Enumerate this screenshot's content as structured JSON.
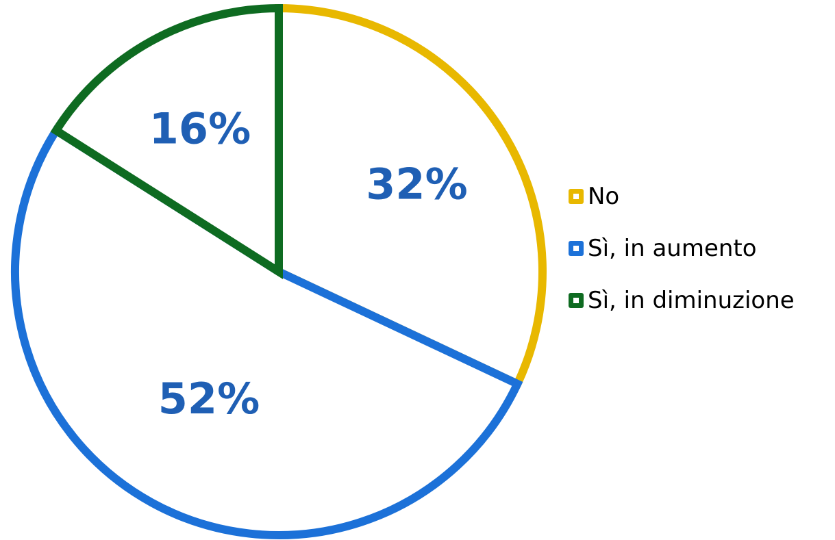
{
  "chart_data": {
    "type": "pie",
    "title": "",
    "categories": [
      "No",
      "Sì, in aumento",
      "Sì, in diminuzione"
    ],
    "values": [
      32,
      52,
      16
    ],
    "labels": [
      "32%",
      "52%",
      "16%"
    ],
    "colors": [
      "#e8b800",
      "#1c71d8",
      "#0e6b21"
    ],
    "label_color": "#1f5fb4",
    "start_angle_deg": 0,
    "direction": "clockwise",
    "legend": {
      "position": "right",
      "entries": [
        "No",
        "Sì, in aumento",
        "Sì, in diminuzione"
      ]
    }
  }
}
